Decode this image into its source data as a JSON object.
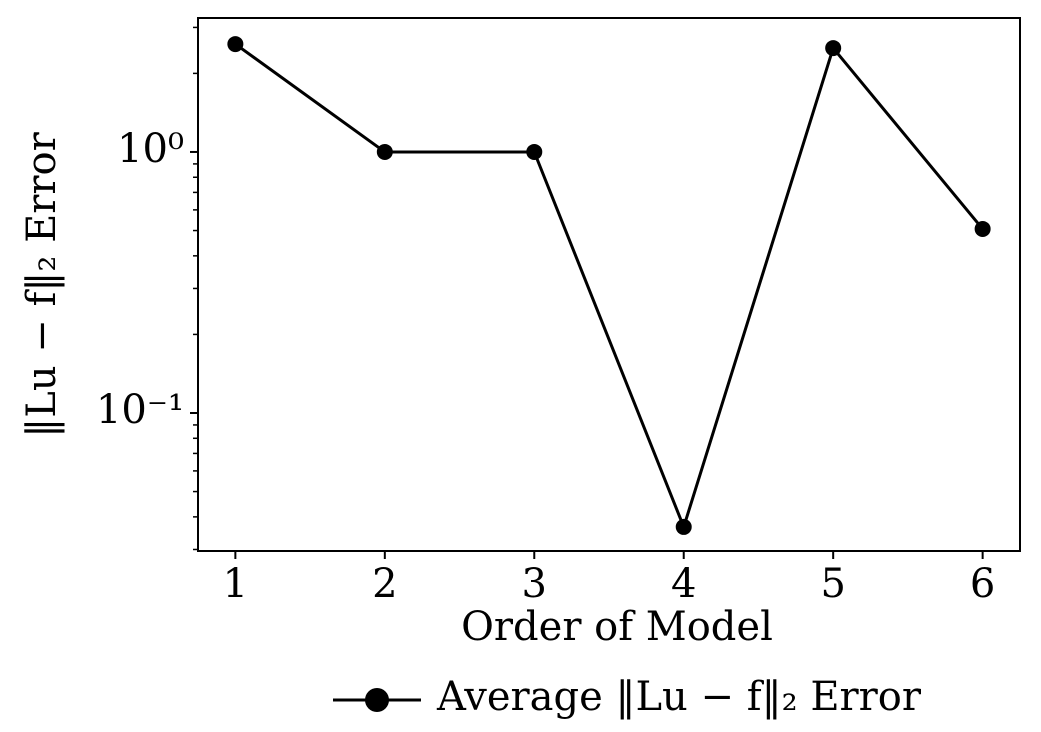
{
  "chart_data": {
    "type": "line",
    "xlabel": "Order of Model",
    "ylabel": "‖Lu − f‖₂ Error",
    "x": [
      1,
      2,
      3,
      4,
      5,
      6
    ],
    "series": [
      {
        "name": "Average ‖Lu − f‖₂ Error",
        "color": "#000000",
        "values": [
          2.59,
          1.0,
          1.0,
          0.0366,
          2.5,
          0.507
        ]
      }
    ],
    "xlim": [
      0.75,
      6.25
    ],
    "xticks": [
      1,
      2,
      3,
      4,
      5,
      6
    ],
    "ylim": [
      0.0296,
      3.26
    ],
    "yscale": "log",
    "yticks": [
      {
        "value": 1,
        "label": "10⁰"
      },
      {
        "value": 0.1,
        "label": "10⁻¹"
      }
    ],
    "yminorticks": [
      0.03,
      0.04,
      0.05,
      0.06,
      0.07,
      0.08,
      0.09,
      0.2,
      0.3,
      0.4,
      0.5,
      0.6,
      0.7,
      0.8,
      0.9,
      2,
      3
    ],
    "legend": "below",
    "grid": false
  }
}
